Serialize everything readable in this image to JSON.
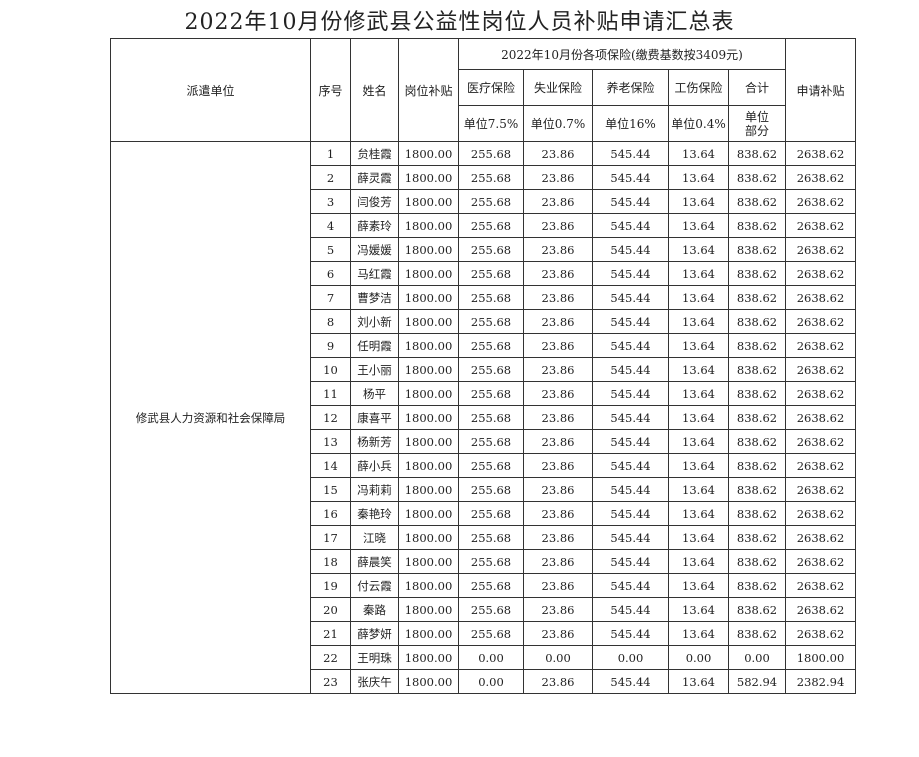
{
  "title": "2022年10月份修武县公益性岗位人员补贴申请汇总表",
  "headers": {
    "unit": "派遣单位",
    "no": "序号",
    "name": "姓名",
    "post": "岗位补贴",
    "insurance_group": "2022年10月份各项保险(缴费基数按3409元)",
    "medical": "医疗保险",
    "unemployment": "失业保险",
    "pension": "养老保险",
    "injury": "工伤保险",
    "total": "合计",
    "apply": "申请补贴",
    "medical_rate": "单位7.5%",
    "unemployment_rate": "单位0.7%",
    "pension_rate": "单位16%",
    "injury_rate": "单位0.4%",
    "total_note": "单位部分"
  },
  "organization": "修武县人力资源和社会保障局",
  "rows": [
    [
      "1",
      "贠桂霞",
      "1800.00",
      "255.68",
      "23.86",
      "545.44",
      "13.64",
      "838.62",
      "2638.62"
    ],
    [
      "2",
      "薛灵霞",
      "1800.00",
      "255.68",
      "23.86",
      "545.44",
      "13.64",
      "838.62",
      "2638.62"
    ],
    [
      "3",
      "闫俊芳",
      "1800.00",
      "255.68",
      "23.86",
      "545.44",
      "13.64",
      "838.62",
      "2638.62"
    ],
    [
      "4",
      "薛素玲",
      "1800.00",
      "255.68",
      "23.86",
      "545.44",
      "13.64",
      "838.62",
      "2638.62"
    ],
    [
      "5",
      "冯媛媛",
      "1800.00",
      "255.68",
      "23.86",
      "545.44",
      "13.64",
      "838.62",
      "2638.62"
    ],
    [
      "6",
      "马红霞",
      "1800.00",
      "255.68",
      "23.86",
      "545.44",
      "13.64",
      "838.62",
      "2638.62"
    ],
    [
      "7",
      "曹梦洁",
      "1800.00",
      "255.68",
      "23.86",
      "545.44",
      "13.64",
      "838.62",
      "2638.62"
    ],
    [
      "8",
      "刘小新",
      "1800.00",
      "255.68",
      "23.86",
      "545.44",
      "13.64",
      "838.62",
      "2638.62"
    ],
    [
      "9",
      "任明霞",
      "1800.00",
      "255.68",
      "23.86",
      "545.44",
      "13.64",
      "838.62",
      "2638.62"
    ],
    [
      "10",
      "王小丽",
      "1800.00",
      "255.68",
      "23.86",
      "545.44",
      "13.64",
      "838.62",
      "2638.62"
    ],
    [
      "11",
      "杨平",
      "1800.00",
      "255.68",
      "23.86",
      "545.44",
      "13.64",
      "838.62",
      "2638.62"
    ],
    [
      "12",
      "康喜平",
      "1800.00",
      "255.68",
      "23.86",
      "545.44",
      "13.64",
      "838.62",
      "2638.62"
    ],
    [
      "13",
      "杨新芳",
      "1800.00",
      "255.68",
      "23.86",
      "545.44",
      "13.64",
      "838.62",
      "2638.62"
    ],
    [
      "14",
      "薛小兵",
      "1800.00",
      "255.68",
      "23.86",
      "545.44",
      "13.64",
      "838.62",
      "2638.62"
    ],
    [
      "15",
      "冯莉莉",
      "1800.00",
      "255.68",
      "23.86",
      "545.44",
      "13.64",
      "838.62",
      "2638.62"
    ],
    [
      "16",
      "秦艳玲",
      "1800.00",
      "255.68",
      "23.86",
      "545.44",
      "13.64",
      "838.62",
      "2638.62"
    ],
    [
      "17",
      "江晓",
      "1800.00",
      "255.68",
      "23.86",
      "545.44",
      "13.64",
      "838.62",
      "2638.62"
    ],
    [
      "18",
      "薛晨笑",
      "1800.00",
      "255.68",
      "23.86",
      "545.44",
      "13.64",
      "838.62",
      "2638.62"
    ],
    [
      "19",
      "付云霞",
      "1800.00",
      "255.68",
      "23.86",
      "545.44",
      "13.64",
      "838.62",
      "2638.62"
    ],
    [
      "20",
      "秦路",
      "1800.00",
      "255.68",
      "23.86",
      "545.44",
      "13.64",
      "838.62",
      "2638.62"
    ],
    [
      "21",
      "薛梦妍",
      "1800.00",
      "255.68",
      "23.86",
      "545.44",
      "13.64",
      "838.62",
      "2638.62"
    ],
    [
      "22",
      "王明珠",
      "1800.00",
      "0.00",
      "0.00",
      "0.00",
      "0.00",
      "0.00",
      "1800.00"
    ],
    [
      "23",
      "张庆午",
      "1800.00",
      "0.00",
      "23.86",
      "545.44",
      "13.64",
      "582.94",
      "2382.94"
    ]
  ]
}
